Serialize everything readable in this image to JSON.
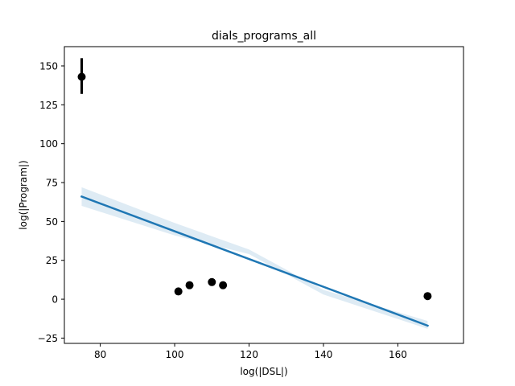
{
  "chart_data": {
    "type": "scatter",
    "title": "dials_programs_all",
    "xlabel": "log(|DSL|)",
    "ylabel": "log(|Program|)",
    "xlim": [
      70.35,
      177.65
    ],
    "ylim": [
      -28.4,
      162.4
    ],
    "x_ticks": [
      80,
      100,
      120,
      140,
      160
    ],
    "y_ticks": [
      -25,
      0,
      25,
      50,
      75,
      100,
      125,
      150
    ],
    "grid": false,
    "legend": "none",
    "points": [
      {
        "x": 75,
        "y": 143,
        "err_low": 132,
        "err_high": 155
      },
      {
        "x": 101,
        "y": 5
      },
      {
        "x": 104,
        "y": 9
      },
      {
        "x": 110,
        "y": 11
      },
      {
        "x": 113,
        "y": 9
      },
      {
        "x": 168,
        "y": 2
      }
    ],
    "regression": {
      "line": [
        [
          75,
          66
        ],
        [
          168,
          -17
        ]
      ],
      "ci_band": [
        [
          75,
          60,
          72
        ],
        [
          100,
          41,
          49
        ],
        [
          120,
          29,
          32
        ],
        [
          140,
          3,
          6
        ],
        [
          168,
          -19,
          -14
        ]
      ]
    },
    "colors": {
      "points": "#000000",
      "regression_line": "#1f77b4",
      "ci_band": "#1f77b4"
    }
  }
}
